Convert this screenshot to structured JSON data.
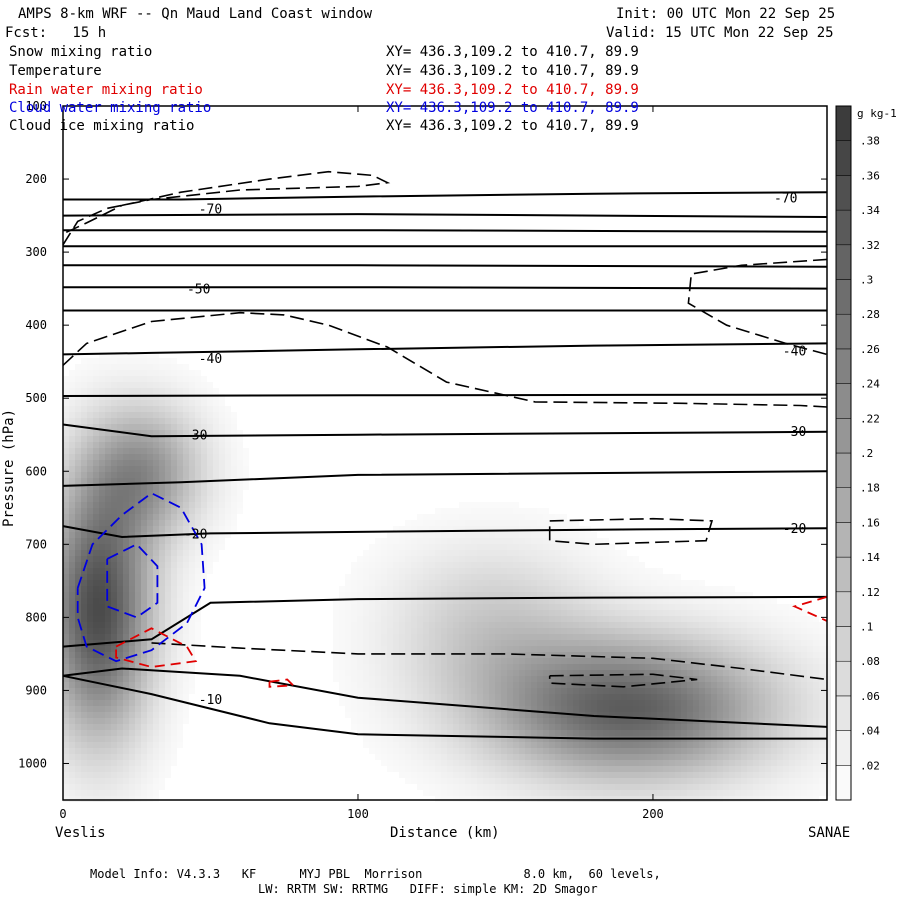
{
  "header": {
    "title": "AMPS 8-km WRF -- Qn Maud Land Coast window",
    "init": "Init: 00 UTC Mon 22 Sep 25",
    "forecast": "Fcst:   15 h",
    "valid": "Valid: 15 UTC Mon 22 Sep 25"
  },
  "legend": [
    {
      "label": "Snow mixing ratio",
      "xy": "XY= 436.3,109.2 to 410.7, 89.9",
      "color": "#000000"
    },
    {
      "label": "Temperature",
      "xy": "XY= 436.3,109.2 to 410.7, 89.9",
      "color": "#000000"
    },
    {
      "label": "Rain water mixing ratio",
      "xy": "XY= 436.3,109.2 to 410.7, 89.9",
      "color": "#e00000"
    },
    {
      "label": "Cloud water mixing ratio",
      "xy": "XY= 436.3,109.2 to 410.7, 89.9",
      "color": "#0000e0"
    },
    {
      "label": "Cloud ice mixing ratio",
      "xy": "XY= 436.3,109.2 to 410.7, 89.9",
      "color": "#000000"
    }
  ],
  "footer": {
    "line1": "Model Info: V4.3.3   KF      MYJ PBL  Morrison              8.0 km,  60 levels,",
    "line2": "LW: RRTM SW: RRTMG   DIFF: simple KM: 2D Smagor"
  },
  "chart_data": {
    "type": "heatmap",
    "title": "AMPS 8-km WRF -- Qn Maud Land Coast window",
    "xlabel": "Distance (km)",
    "ylabel": "Pressure (hPa)",
    "xlim": [
      0,
      259
    ],
    "ylim": [
      1050,
      100
    ],
    "x_ticks": [
      0,
      100,
      200
    ],
    "y_ticks": [
      100,
      200,
      300,
      400,
      500,
      600,
      700,
      800,
      900,
      1000
    ],
    "endpoints": {
      "left": "Veslis",
      "right": "SANAE"
    },
    "colorbar": {
      "unit": "g kg-1",
      "ticks": [
        0.02,
        0.04,
        0.06,
        0.08,
        0.1,
        0.12,
        0.14,
        0.16,
        0.18,
        0.2,
        0.22,
        0.24,
        0.26,
        0.28,
        0.3,
        0.32,
        0.34,
        0.36,
        0.38
      ],
      "tick_labels": [
        ".02",
        ".04",
        ".06",
        ".08",
        ".1",
        ".12",
        ".14",
        ".16",
        ".18",
        ".2",
        ".22",
        ".24",
        ".26",
        ".28",
        ".3",
        ".32",
        ".34",
        ".36",
        ".38"
      ],
      "min": 0,
      "max": 0.4
    },
    "snow_blobs": [
      {
        "x": 12,
        "p": 790,
        "sx": 18,
        "sp": 170,
        "peak": 0.36
      },
      {
        "x": 28,
        "p": 600,
        "sx": 20,
        "sp": 90,
        "peak": 0.2
      },
      {
        "x": 192,
        "p": 925,
        "sx": 48,
        "sp": 95,
        "peak": 0.32
      },
      {
        "x": 145,
        "p": 810,
        "sx": 35,
        "sp": 110,
        "peak": 0.1
      }
    ],
    "temperature_isotherms": [
      {
        "label": "-70",
        "points": [
          [
            0,
            228
          ],
          [
            40,
            228
          ],
          [
            100,
            224
          ],
          [
            180,
            220
          ],
          [
            259,
            218
          ]
        ]
      },
      {
        "label": "",
        "points": [
          [
            0,
            250
          ],
          [
            100,
            248
          ],
          [
            259,
            252
          ]
        ]
      },
      {
        "label": "",
        "points": [
          [
            0,
            270
          ],
          [
            100,
            270
          ],
          [
            259,
            272
          ]
        ]
      },
      {
        "label": "",
        "points": [
          [
            0,
            292
          ],
          [
            100,
            292
          ],
          [
            259,
            292
          ]
        ]
      },
      {
        "label": "",
        "points": [
          [
            0,
            318
          ],
          [
            100,
            318
          ],
          [
            259,
            320
          ]
        ]
      },
      {
        "label": "-50",
        "points": [
          [
            0,
            348
          ],
          [
            100,
            348
          ],
          [
            259,
            350
          ]
        ]
      },
      {
        "label": "",
        "points": [
          [
            0,
            380
          ],
          [
            100,
            380
          ],
          [
            259,
            380
          ]
        ]
      },
      {
        "label": "-40",
        "points": [
          [
            0,
            440
          ],
          [
            30,
            438
          ],
          [
            100,
            433
          ],
          [
            180,
            428
          ],
          [
            259,
            425
          ]
        ]
      },
      {
        "label": "",
        "points": [
          [
            0,
            497
          ],
          [
            100,
            496
          ],
          [
            259,
            495
          ]
        ]
      },
      {
        "label": "-30",
        "points": [
          [
            0,
            536
          ],
          [
            30,
            552
          ],
          [
            100,
            550
          ],
          [
            180,
            548
          ],
          [
            259,
            546
          ]
        ]
      },
      {
        "label": "",
        "points": [
          [
            0,
            620
          ],
          [
            40,
            615
          ],
          [
            100,
            605
          ],
          [
            259,
            600
          ]
        ]
      },
      {
        "label": "-20",
        "points": [
          [
            0,
            675
          ],
          [
            20,
            690
          ],
          [
            50,
            685
          ],
          [
            100,
            683
          ],
          [
            180,
            680
          ],
          [
            259,
            678
          ]
        ]
      },
      {
        "label": "",
        "points": [
          [
            0,
            840
          ],
          [
            30,
            830
          ],
          [
            50,
            780
          ],
          [
            100,
            775
          ],
          [
            180,
            773
          ],
          [
            259,
            772
          ]
        ]
      },
      {
        "label": "-10",
        "points": [
          [
            0,
            880
          ],
          [
            20,
            870
          ],
          [
            60,
            880
          ],
          [
            100,
            910
          ],
          [
            180,
            935
          ],
          [
            259,
            950
          ]
        ]
      },
      {
        "label": "",
        "points": [
          [
            0,
            880
          ],
          [
            30,
            905
          ],
          [
            70,
            945
          ],
          [
            100,
            960
          ],
          [
            180,
            966
          ],
          [
            259,
            966
          ]
        ]
      }
    ],
    "isotherm_labels": [
      {
        "text": "-70",
        "x": 50,
        "p": 240
      },
      {
        "text": "-70",
        "x": 245,
        "p": 225
      },
      {
        "text": "-50",
        "x": 46,
        "p": 350
      },
      {
        "text": "-40",
        "x": 50,
        "p": 445
      },
      {
        "text": "-40",
        "x": 248,
        "p": 435
      },
      {
        "text": "-30",
        "x": 45,
        "p": 550
      },
      {
        "text": "-30",
        "x": 248,
        "p": 545
      },
      {
        "text": "-20",
        "x": 45,
        "p": 685
      },
      {
        "text": "-20",
        "x": 248,
        "p": 678
      },
      {
        "text": "-10",
        "x": 50,
        "p": 912
      }
    ],
    "cloud_ice_contours": [
      {
        "points": [
          [
            0,
            290
          ],
          [
            5,
            258
          ],
          [
            15,
            240
          ],
          [
            30,
            228
          ],
          [
            60,
            215
          ],
          [
            100,
            210
          ],
          [
            110,
            205
          ],
          [
            105,
            195
          ],
          [
            90,
            190
          ],
          [
            70,
            200
          ],
          [
            40,
            218
          ],
          [
            20,
            236
          ],
          [
            8,
            260
          ],
          [
            0,
            275
          ]
        ]
      },
      {
        "points": [
          [
            0,
            455
          ],
          [
            8,
            425
          ],
          [
            30,
            395
          ],
          [
            60,
            383
          ],
          [
            75,
            386
          ],
          [
            90,
            400
          ],
          [
            110,
            430
          ],
          [
            130,
            478
          ],
          [
            160,
            505
          ],
          [
            210,
            507
          ],
          [
            250,
            510
          ],
          [
            259,
            512
          ]
        ]
      },
      {
        "points": [
          [
            259,
            310
          ],
          [
            230,
            318
          ],
          [
            213,
            330
          ],
          [
            212,
            370
          ],
          [
            225,
            400
          ],
          [
            245,
            425
          ],
          [
            259,
            440
          ]
        ]
      },
      {
        "points": [
          [
            165,
            668
          ],
          [
            200,
            665
          ],
          [
            220,
            668
          ],
          [
            218,
            695
          ],
          [
            180,
            700
          ],
          [
            165,
            695
          ],
          [
            165,
            668
          ]
        ]
      },
      {
        "points": [
          [
            30,
            835
          ],
          [
            60,
            842
          ],
          [
            100,
            850
          ],
          [
            150,
            850
          ],
          [
            200,
            856
          ],
          [
            230,
            870
          ],
          [
            259,
            885
          ]
        ]
      },
      {
        "points": [
          [
            165,
            880
          ],
          [
            200,
            878
          ],
          [
            215,
            885
          ],
          [
            190,
            895
          ],
          [
            165,
            890
          ],
          [
            165,
            880
          ]
        ]
      }
    ],
    "cloud_water_contours": [
      {
        "points": [
          [
            5,
            760
          ],
          [
            10,
            700
          ],
          [
            20,
            660
          ],
          [
            30,
            630
          ],
          [
            40,
            650
          ],
          [
            47,
            700
          ],
          [
            48,
            760
          ],
          [
            42,
            808
          ],
          [
            30,
            845
          ],
          [
            18,
            860
          ],
          [
            8,
            840
          ],
          [
            5,
            800
          ],
          [
            5,
            760
          ]
        ]
      },
      {
        "points": [
          [
            15,
            720
          ],
          [
            25,
            700
          ],
          [
            32,
            730
          ],
          [
            32,
            780
          ],
          [
            25,
            800
          ],
          [
            15,
            785
          ],
          [
            15,
            720
          ]
        ]
      }
    ],
    "rain_water_contours": [
      {
        "points": [
          [
            18,
            840
          ],
          [
            30,
            815
          ],
          [
            42,
            840
          ],
          [
            45,
            860
          ],
          [
            30,
            868
          ],
          [
            18,
            855
          ],
          [
            18,
            840
          ]
        ]
      },
      {
        "points": [
          [
            70,
            888
          ],
          [
            76,
            885
          ],
          [
            78,
            893
          ],
          [
            70,
            895
          ],
          [
            70,
            888
          ]
        ]
      },
      {
        "points": [
          [
            259,
            772
          ],
          [
            248,
            785
          ],
          [
            259,
            805
          ]
        ]
      }
    ]
  }
}
